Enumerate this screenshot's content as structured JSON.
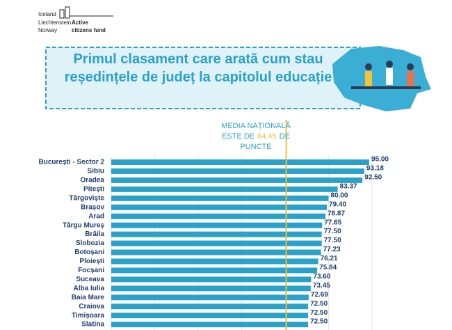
{
  "logo": {
    "countries": [
      "Iceland",
      "Liechtenstein",
      "Norway"
    ],
    "fund_line1": "Active",
    "fund_line2": "citizens fund"
  },
  "chart_data": {
    "type": "bar",
    "orientation": "horizontal",
    "title": "Primul clasament care arată cum stau reședințele de județ la capitolul educație",
    "annotation": {
      "line1": "MEDIA NAȚIONALĂ",
      "before": "ESTE DE",
      "after": "DE",
      "line3": "PUNCTE"
    },
    "reference_line": 64.45,
    "reference_color": "#f2c237",
    "categories": [
      "București - Sector 2",
      "Sibiu",
      "Oradea",
      "Pitești",
      "Târgoviște",
      "Brașov",
      "Arad",
      "Târgu Mureș",
      "Brăila",
      "Slobozia",
      "Botoșani",
      "Ploiești",
      "Focșani",
      "Suceava",
      "Alba Iulia",
      "Baia Mare",
      "Craiova",
      "Timișoara",
      "Slatina"
    ],
    "values": [
      95,
      93.18,
      92.5,
      83.37,
      80,
      79.4,
      78.87,
      77.65,
      77.5,
      77.5,
      77.23,
      76.21,
      75.84,
      73.6,
      73.45,
      72.69,
      72.5,
      72.5,
      72.5
    ],
    "value_labels": [
      "95.00",
      "93.18",
      "92.50",
      "83.37",
      "80.00",
      "79.40",
      "78.87",
      "77.65",
      "77.50",
      "77.50",
      "77.23",
      "76.21",
      "75.84",
      "73.60",
      "73.45",
      "72.69",
      "72.50",
      "72.50",
      "72.50"
    ],
    "color": "#2aa1c9",
    "xlim": [
      0,
      100
    ]
  }
}
